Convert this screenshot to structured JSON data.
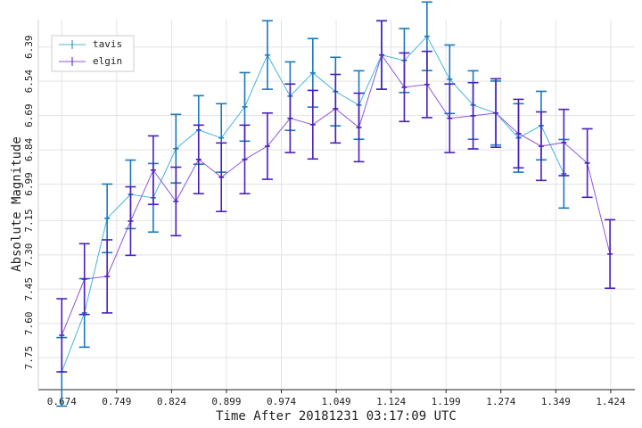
{
  "chart_data": {
    "type": "errorbar-line",
    "xlabel": "Time After 20181231 03:17:09 UTC",
    "ylabel": "Absolute Magnitude",
    "x": [
      0.674,
      0.705,
      0.736,
      0.768,
      0.799,
      0.83,
      0.861,
      0.892,
      0.924,
      0.955,
      0.986,
      1.017,
      1.048,
      1.08,
      1.111,
      1.142,
      1.173,
      1.204,
      1.236,
      1.267,
      1.298,
      1.329,
      1.36,
      1.392,
      1.423
    ],
    "series": [
      {
        "name": "tavis",
        "color": "#45b4e3",
        "error_color": "#1a78b8",
        "values": [
          7.812,
          7.554,
          7.14,
          7.035,
          7.05,
          6.835,
          6.753,
          6.788,
          6.652,
          6.425,
          6.605,
          6.503,
          6.585,
          6.644,
          6.425,
          6.449,
          6.343,
          6.531,
          6.644,
          6.679,
          6.788,
          6.734,
          6.945,
          null,
          null
        ],
        "errors": [
          0.15,
          0.15,
          0.15,
          0.15,
          0.15,
          0.15,
          0.15,
          0.15,
          0.15,
          0.15,
          0.15,
          0.15,
          0.15,
          0.15,
          0.15,
          0.14,
          0.15,
          0.15,
          0.15,
          0.14,
          0.15,
          0.15,
          0.15,
          null,
          null
        ]
      },
      {
        "name": "elgin",
        "color": "#8e57dc",
        "error_color": "#4a1fbe",
        "values": [
          7.652,
          7.406,
          7.394,
          7.152,
          6.929,
          7.066,
          6.882,
          6.96,
          6.882,
          6.824,
          6.702,
          6.73,
          6.66,
          6.742,
          6.425,
          6.566,
          6.554,
          6.702,
          6.691,
          6.679,
          6.769,
          6.824,
          6.808,
          6.898,
          7.296
        ],
        "errors": [
          0.16,
          0.155,
          0.16,
          0.15,
          0.15,
          0.15,
          0.15,
          0.15,
          0.15,
          0.145,
          0.15,
          0.15,
          0.15,
          0.15,
          0.15,
          0.15,
          0.145,
          0.15,
          0.145,
          0.15,
          0.15,
          0.15,
          0.145,
          0.15,
          0.15
        ]
      }
    ],
    "xlim": [
      0.642,
      1.457
    ],
    "xticks": [
      0.674,
      0.749,
      0.824,
      0.899,
      0.974,
      1.049,
      1.124,
      1.199,
      1.274,
      1.349,
      1.424
    ],
    "ylim": [
      7.89,
      6.27
    ],
    "yticks": [
      6.39,
      6.54,
      6.69,
      6.84,
      6.99,
      7.15,
      {
        "value": 7.3,
        "label": "7.30"
      },
      7.45,
      {
        "value": 7.6,
        "label": "7.60"
      },
      7.75
    ],
    "grid": true,
    "legend": "upper left"
  }
}
